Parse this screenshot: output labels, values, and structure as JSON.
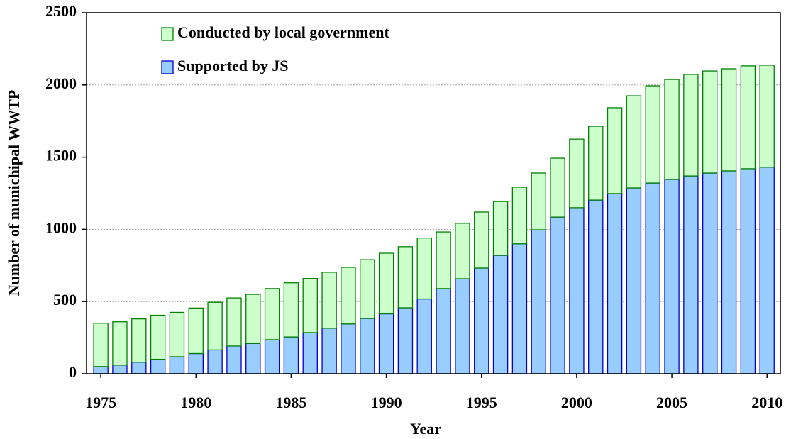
{
  "chart_data": {
    "type": "stacked_bar",
    "xlabel": "Year",
    "ylabel": "Number of munichipal WWTP",
    "x": [
      1975,
      1976,
      1977,
      1978,
      1979,
      1980,
      1981,
      1982,
      1983,
      1984,
      1985,
      1986,
      1987,
      1988,
      1989,
      1990,
      1991,
      1992,
      1993,
      1994,
      1995,
      1996,
      1997,
      1998,
      1999,
      2000,
      2001,
      2002,
      2003,
      2004,
      2005,
      2006,
      2007,
      2008,
      2009,
      2010
    ],
    "series": [
      {
        "name": "Supported by JS",
        "color": "#99ccff",
        "edge": "#0000cc",
        "values": [
          50,
          60,
          80,
          100,
          118,
          140,
          165,
          192,
          210,
          236,
          255,
          285,
          315,
          345,
          383,
          415,
          457,
          518,
          590,
          658,
          732,
          820,
          900,
          997,
          1085,
          1150,
          1203,
          1248,
          1287,
          1321,
          1346,
          1370,
          1390,
          1405,
          1420,
          1430
        ]
      },
      {
        "name": "Conducted by local government",
        "color": "#ccffcc",
        "edge": "#008000",
        "values": [
          300,
          300,
          300,
          305,
          307,
          315,
          330,
          333,
          340,
          354,
          375,
          375,
          388,
          392,
          407,
          420,
          423,
          422,
          392,
          384,
          388,
          373,
          392,
          393,
          408,
          475,
          511,
          594,
          638,
          673,
          692,
          703,
          707,
          707,
          712,
          707
        ]
      }
    ],
    "xlim": [
      1974.25,
      2010.7
    ],
    "xticks": [
      1975,
      1980,
      1985,
      1990,
      1995,
      2000,
      2005,
      2010
    ],
    "ylim": [
      0,
      2500
    ],
    "yticks": [
      0,
      500,
      1000,
      1500,
      2000,
      2500
    ],
    "grid": true,
    "legend": "upper left"
  }
}
